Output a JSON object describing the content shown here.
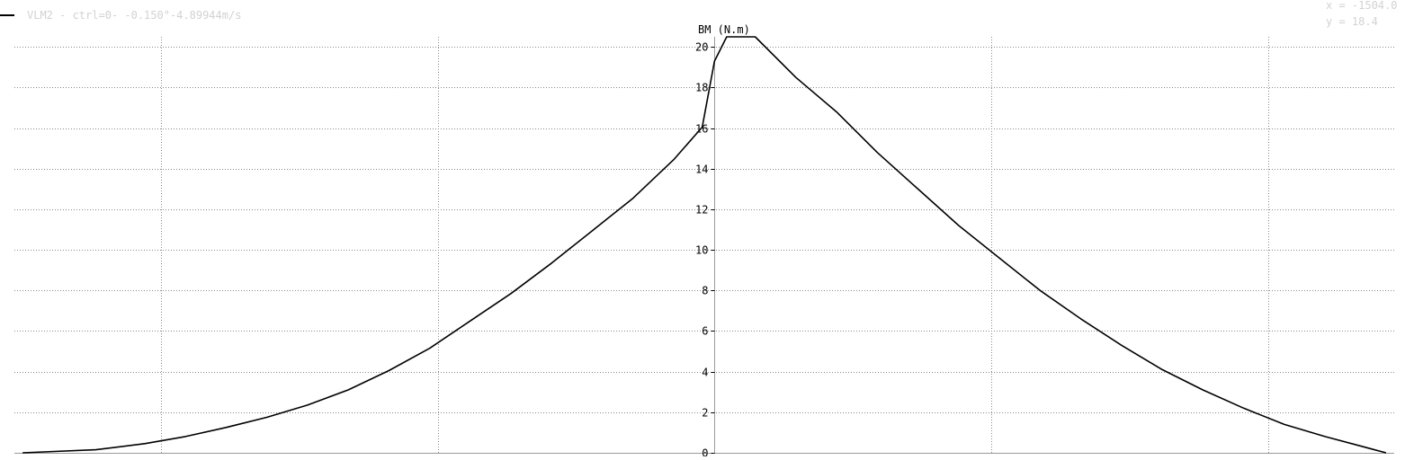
{
  "chart_data": {
    "type": "line",
    "title": "BM (N.m)",
    "legend": {
      "placement": "top-left",
      "label": "VLM2 -  ctrl=0- -0.150°-4.89944m/s"
    },
    "readout": {
      "x_text": "x = -1504.0",
      "y_text": "y =    18.4"
    },
    "xlim": [
      -1720,
      1670
    ],
    "ylim": [
      0,
      20.5
    ],
    "y_ticks": [
      0,
      2,
      4,
      6,
      8,
      10,
      12,
      14,
      16,
      18,
      20
    ],
    "x_gridlines": [
      -1360,
      -680,
      680,
      1360
    ],
    "grid": true,
    "series": [
      {
        "name": "VLM2 -  ctrl=0- -0.150°-4.89944m/s",
        "color": "#000000",
        "x": [
          -1700,
          -1520,
          -1400,
          -1300,
          -1200,
          -1100,
          -1000,
          -900,
          -800,
          -700,
          -600,
          -500,
          -400,
          -300,
          -200,
          -100,
          -30,
          0,
          30,
          100,
          200,
          300,
          400,
          500,
          600,
          700,
          800,
          900,
          1000,
          1100,
          1200,
          1300,
          1400,
          1500,
          1650
        ],
        "y": [
          0.0,
          0.15,
          0.45,
          0.8,
          1.25,
          1.75,
          2.35,
          3.1,
          4.05,
          5.15,
          6.5,
          7.85,
          9.35,
          10.95,
          12.55,
          14.45,
          16.05,
          19.3,
          20.5,
          20.5,
          18.5,
          16.8,
          14.8,
          13.0,
          11.2,
          9.6,
          8.0,
          6.6,
          5.3,
          4.1,
          3.1,
          2.2,
          1.4,
          0.8,
          0.0
        ]
      }
    ]
  }
}
